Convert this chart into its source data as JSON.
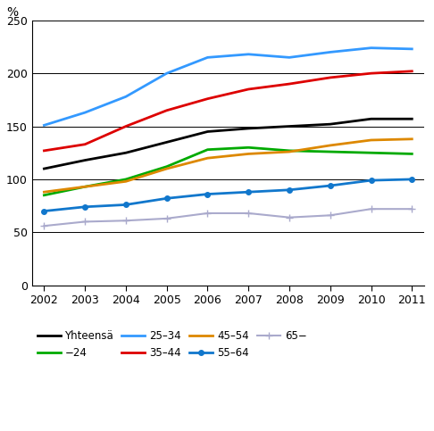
{
  "years": [
    2002,
    2003,
    2004,
    2005,
    2006,
    2007,
    2008,
    2009,
    2010,
    2011
  ],
  "series": {
    "Yhteensä": {
      "values": [
        110,
        118,
        125,
        135,
        145,
        148,
        150,
        152,
        157,
        157
      ],
      "color": "#000000",
      "linewidth": 2.0,
      "marker": null,
      "linestyle": "-"
    },
    "−24": {
      "values": [
        85,
        93,
        100,
        112,
        128,
        130,
        127,
        126,
        125,
        124
      ],
      "color": "#00aa00",
      "linewidth": 2.0,
      "marker": null,
      "linestyle": "-"
    },
    "25–34": {
      "values": [
        151,
        163,
        178,
        200,
        215,
        218,
        215,
        220,
        224,
        223
      ],
      "color": "#3399ff",
      "linewidth": 2.0,
      "marker": null,
      "linestyle": "-"
    },
    "35–44": {
      "values": [
        127,
        133,
        150,
        165,
        176,
        185,
        190,
        196,
        200,
        202
      ],
      "color": "#dd0000",
      "linewidth": 2.0,
      "marker": null,
      "linestyle": "-"
    },
    "45–54": {
      "values": [
        88,
        93,
        98,
        110,
        120,
        124,
        126,
        132,
        137,
        138
      ],
      "color": "#dd8800",
      "linewidth": 2.0,
      "marker": null,
      "linestyle": "-"
    },
    "55–64": {
      "values": [
        70,
        74,
        76,
        82,
        86,
        88,
        90,
        94,
        99,
        100
      ],
      "color": "#1177cc",
      "linewidth": 2.0,
      "marker": "o",
      "linestyle": "-",
      "markersize": 4
    },
    "65−": {
      "values": [
        56,
        60,
        61,
        63,
        68,
        68,
        64,
        66,
        72,
        72
      ],
      "color": "#aaaacc",
      "linewidth": 1.5,
      "marker": "+",
      "linestyle": "-",
      "markersize": 6
    }
  },
  "ylabel": "%",
  "ylim": [
    0,
    250
  ],
  "yticks": [
    0,
    50,
    100,
    150,
    200,
    250
  ],
  "grid_yticks": [
    50,
    100,
    150,
    200,
    250
  ],
  "xlim": [
    2002,
    2011
  ],
  "xticks": [
    2002,
    2003,
    2004,
    2005,
    2006,
    2007,
    2008,
    2009,
    2010,
    2011
  ],
  "legend_labels": [
    "Yhteensä",
    "−24",
    "25–34",
    "35–44",
    "45–54",
    "55–64",
    "65−"
  ]
}
